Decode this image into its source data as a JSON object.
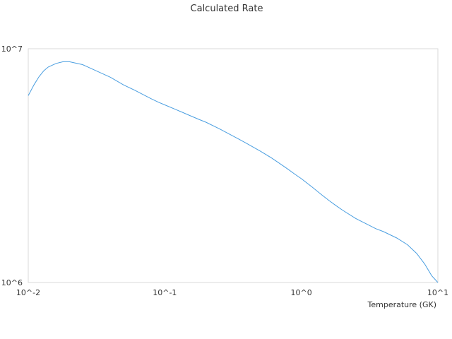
{
  "chart_data": {
    "type": "line",
    "title": "Calculated Rate",
    "xlabel": "Temperature (GK)",
    "ylabel": "",
    "x_scale": "log",
    "y_scale": "log",
    "xlim": [
      0.01,
      10
    ],
    "ylim": [
      1000000,
      10000000
    ],
    "x_tick_labels": [
      "10^-2",
      "10^-1",
      "10^0",
      "10^1"
    ],
    "y_tick_labels": [
      "10^6",
      "10^7"
    ],
    "grid": false,
    "legend": "none",
    "line_color": "#4a9ee0",
    "series": [
      {
        "x": [
          0.01,
          0.011,
          0.012,
          0.013,
          0.014,
          0.016,
          0.018,
          0.02,
          0.025,
          0.03,
          0.04,
          0.05,
          0.06,
          0.07,
          0.08,
          0.09,
          0.1,
          0.12,
          0.15,
          0.18,
          0.2,
          0.25,
          0.3,
          0.35,
          0.4,
          0.45,
          0.5,
          0.6,
          0.7,
          0.8,
          0.9,
          1.0,
          1.2,
          1.4,
          1.6,
          1.8,
          2.0,
          2.5,
          3.0,
          3.5,
          4.0,
          5.0,
          6.0,
          7.0,
          8.0,
          9.0,
          10.0
        ],
        "y": [
          6300000,
          7000000,
          7600000,
          8050000,
          8350000,
          8650000,
          8800000,
          8800000,
          8550000,
          8150000,
          7550000,
          7000000,
          6650000,
          6350000,
          6100000,
          5900000,
          5750000,
          5500000,
          5200000,
          4970000,
          4850000,
          4550000,
          4300000,
          4100000,
          3930000,
          3780000,
          3650000,
          3420000,
          3220000,
          3050000,
          2900000,
          2780000,
          2560000,
          2380000,
          2240000,
          2130000,
          2040000,
          1880000,
          1780000,
          1700000,
          1650000,
          1550000,
          1450000,
          1330000,
          1200000,
          1070000,
          980000
        ]
      }
    ]
  }
}
